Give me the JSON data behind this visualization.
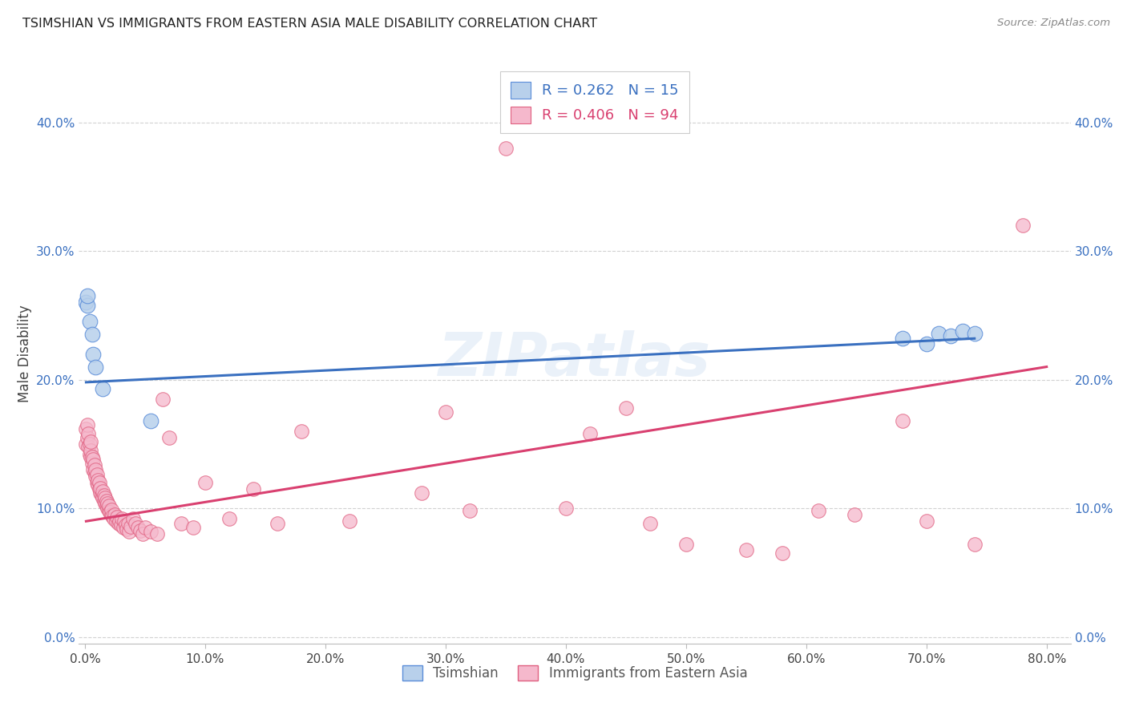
{
  "title": "TSIMSHIAN VS IMMIGRANTS FROM EASTERN ASIA MALE DISABILITY CORRELATION CHART",
  "source": "Source: ZipAtlas.com",
  "ylabel": "Male Disability",
  "legend_labels": [
    "Tsimshian",
    "Immigrants from Eastern Asia"
  ],
  "r_blue": 0.262,
  "n_blue": 15,
  "r_pink": 0.406,
  "n_pink": 94,
  "xlim": [
    -0.005,
    0.82
  ],
  "ylim": [
    -0.005,
    0.445
  ],
  "xticks": [
    0.0,
    0.1,
    0.2,
    0.3,
    0.4,
    0.5,
    0.6,
    0.7,
    0.8
  ],
  "yticks": [
    0.0,
    0.1,
    0.2,
    0.3,
    0.4
  ],
  "blue_fill": "#b8d0eb",
  "blue_edge": "#5b8dd9",
  "pink_fill": "#f5b8cc",
  "pink_edge": "#e06080",
  "blue_line": "#3a70c0",
  "pink_line": "#d94070",
  "grid_color": "#cccccc",
  "bg": "#ffffff",
  "blue_x": [
    0.001,
    0.002,
    0.002,
    0.004,
    0.006,
    0.007,
    0.009,
    0.015,
    0.055,
    0.68,
    0.7,
    0.71,
    0.72,
    0.73,
    0.74
  ],
  "blue_y": [
    0.26,
    0.258,
    0.265,
    0.245,
    0.235,
    0.22,
    0.21,
    0.193,
    0.168,
    0.232,
    0.228,
    0.236,
    0.234,
    0.238,
    0.236
  ],
  "blue_line_x": [
    0.001,
    0.74
  ],
  "blue_line_y": [
    0.198,
    0.232
  ],
  "pink_line_x": [
    0.001,
    0.8
  ],
  "pink_line_y": [
    0.09,
    0.21
  ],
  "pink_x": [
    0.001,
    0.001,
    0.002,
    0.002,
    0.003,
    0.003,
    0.004,
    0.004,
    0.005,
    0.005,
    0.005,
    0.006,
    0.006,
    0.007,
    0.007,
    0.008,
    0.008,
    0.009,
    0.009,
    0.01,
    0.01,
    0.011,
    0.011,
    0.012,
    0.012,
    0.013,
    0.013,
    0.014,
    0.015,
    0.015,
    0.016,
    0.016,
    0.017,
    0.017,
    0.018,
    0.018,
    0.019,
    0.019,
    0.02,
    0.02,
    0.021,
    0.022,
    0.022,
    0.023,
    0.024,
    0.025,
    0.026,
    0.027,
    0.028,
    0.029,
    0.03,
    0.031,
    0.032,
    0.033,
    0.034,
    0.035,
    0.036,
    0.037,
    0.038,
    0.04,
    0.042,
    0.044,
    0.046,
    0.048,
    0.05,
    0.055,
    0.06,
    0.065,
    0.07,
    0.08,
    0.09,
    0.1,
    0.12,
    0.14,
    0.16,
    0.18,
    0.22,
    0.28,
    0.3,
    0.32,
    0.35,
    0.4,
    0.42,
    0.45,
    0.47,
    0.5,
    0.55,
    0.58,
    0.61,
    0.64,
    0.68,
    0.7,
    0.74,
    0.78
  ],
  "pink_y": [
    0.15,
    0.162,
    0.155,
    0.165,
    0.148,
    0.158,
    0.142,
    0.15,
    0.14,
    0.145,
    0.152,
    0.135,
    0.14,
    0.13,
    0.138,
    0.128,
    0.134,
    0.125,
    0.13,
    0.12,
    0.126,
    0.118,
    0.122,
    0.115,
    0.12,
    0.112,
    0.116,
    0.11,
    0.108,
    0.113,
    0.106,
    0.11,
    0.104,
    0.108,
    0.102,
    0.106,
    0.1,
    0.104,
    0.098,
    0.102,
    0.097,
    0.095,
    0.099,
    0.094,
    0.092,
    0.095,
    0.09,
    0.093,
    0.088,
    0.09,
    0.087,
    0.092,
    0.085,
    0.09,
    0.087,
    0.084,
    0.088,
    0.082,
    0.086,
    0.092,
    0.088,
    0.085,
    0.083,
    0.08,
    0.085,
    0.082,
    0.08,
    0.185,
    0.155,
    0.088,
    0.085,
    0.12,
    0.092,
    0.115,
    0.088,
    0.16,
    0.09,
    0.112,
    0.175,
    0.098,
    0.38,
    0.1,
    0.158,
    0.178,
    0.088,
    0.072,
    0.068,
    0.065,
    0.098,
    0.095,
    0.168,
    0.09,
    0.072,
    0.32
  ]
}
